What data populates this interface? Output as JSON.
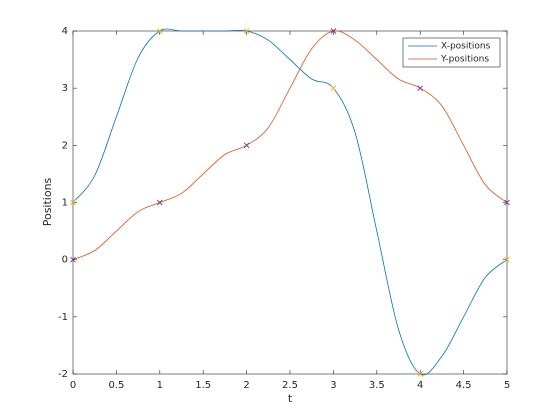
{
  "chart_data": {
    "type": "line",
    "xlabel": "t",
    "ylabel": "Positions",
    "x": [
      0,
      0.25,
      0.5,
      0.75,
      1,
      1.25,
      1.5,
      1.75,
      2,
      2.25,
      2.5,
      2.75,
      3,
      3.25,
      3.5,
      3.75,
      4,
      4.25,
      4.5,
      4.75,
      5
    ],
    "series": [
      {
        "name": "X-positions",
        "color": "#0072bd",
        "values": [
          1,
          1.47,
          2.5,
          3.53,
          4,
          4,
          4,
          4,
          4,
          3.84,
          3.5,
          3.16,
          3,
          2.22,
          0.5,
          -1.22,
          -2,
          -1.69,
          -1,
          -0.31,
          0
        ]
      },
      {
        "name": "Y-positions",
        "color": "#d95319",
        "values": [
          0,
          0.16,
          0.5,
          0.84,
          1,
          1.16,
          1.5,
          1.84,
          2,
          2.31,
          3,
          3.69,
          4,
          3.84,
          3.5,
          3.16,
          3,
          2.69,
          2,
          1.31,
          1
        ]
      }
    ],
    "points": {
      "x": [
        0,
        1,
        2,
        3,
        4,
        5
      ],
      "series": [
        {
          "color": "#edb120",
          "values": [
            1,
            4,
            4,
            3,
            -2,
            0
          ]
        },
        {
          "color": "#7e2f8e",
          "values": [
            0,
            1,
            2,
            4,
            3,
            1
          ]
        }
      ]
    },
    "xlim": [
      0,
      5
    ],
    "xticks": [
      0,
      0.5,
      1,
      1.5,
      2,
      2.5,
      3,
      3.5,
      4,
      4.5,
      5
    ],
    "ylim": [
      -2,
      4
    ],
    "yticks": [
      -2,
      -1,
      0,
      1,
      2,
      3,
      4
    ],
    "grid": false,
    "legend": "northeast"
  }
}
